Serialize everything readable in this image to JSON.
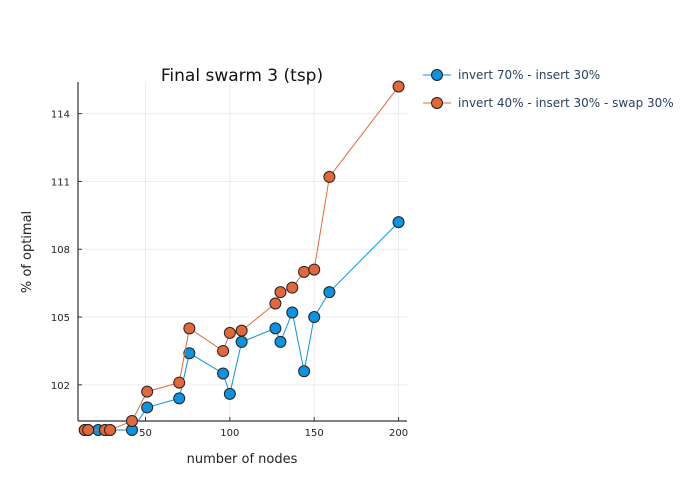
{
  "chart_data": {
    "type": "line",
    "title": "Final swarm 3 (tsp)",
    "xlabel": "number of nodes",
    "ylabel": "% of optimal",
    "xlim": [
      10,
      205
    ],
    "ylim": [
      100.4,
      115.4
    ],
    "xticks": [
      50,
      100,
      150,
      200
    ],
    "yticks": [
      102,
      105,
      108,
      111,
      114
    ],
    "grid": true,
    "legend_position": "top-right outside",
    "series": [
      {
        "name": "invert 70% - insert 30%",
        "color": "#0b92e0",
        "points": [
          [
            14,
            100.0
          ],
          [
            16,
            100.0
          ],
          [
            22,
            100.0
          ],
          [
            26,
            100.0
          ],
          [
            29,
            100.0
          ],
          [
            42,
            100.0
          ],
          [
            51,
            101.0
          ],
          [
            70,
            101.4
          ],
          [
            76,
            103.4
          ],
          [
            96,
            102.5
          ],
          [
            100,
            101.6
          ],
          [
            107,
            103.9
          ],
          [
            127,
            104.5
          ],
          [
            130,
            103.9
          ],
          [
            137,
            105.2
          ],
          [
            144,
            102.6
          ],
          [
            150,
            105.0
          ],
          [
            159,
            106.1
          ],
          [
            200,
            109.2
          ]
        ]
      },
      {
        "name": "invert 40% - insert 30% - swap 30%",
        "color": "#e2683c",
        "points": [
          [
            14,
            100.0
          ],
          [
            16,
            100.0
          ],
          [
            26,
            100.0
          ],
          [
            29,
            100.0
          ],
          [
            42,
            100.4
          ],
          [
            51,
            101.7
          ],
          [
            70,
            102.1
          ],
          [
            76,
            104.5
          ],
          [
            96,
            103.5
          ],
          [
            100,
            104.3
          ],
          [
            107,
            104.4
          ],
          [
            127,
            105.6
          ],
          [
            130,
            106.1
          ],
          [
            137,
            106.3
          ],
          [
            144,
            107.0
          ],
          [
            150,
            107.1
          ],
          [
            159,
            111.2
          ],
          [
            200,
            115.2
          ]
        ]
      }
    ]
  }
}
